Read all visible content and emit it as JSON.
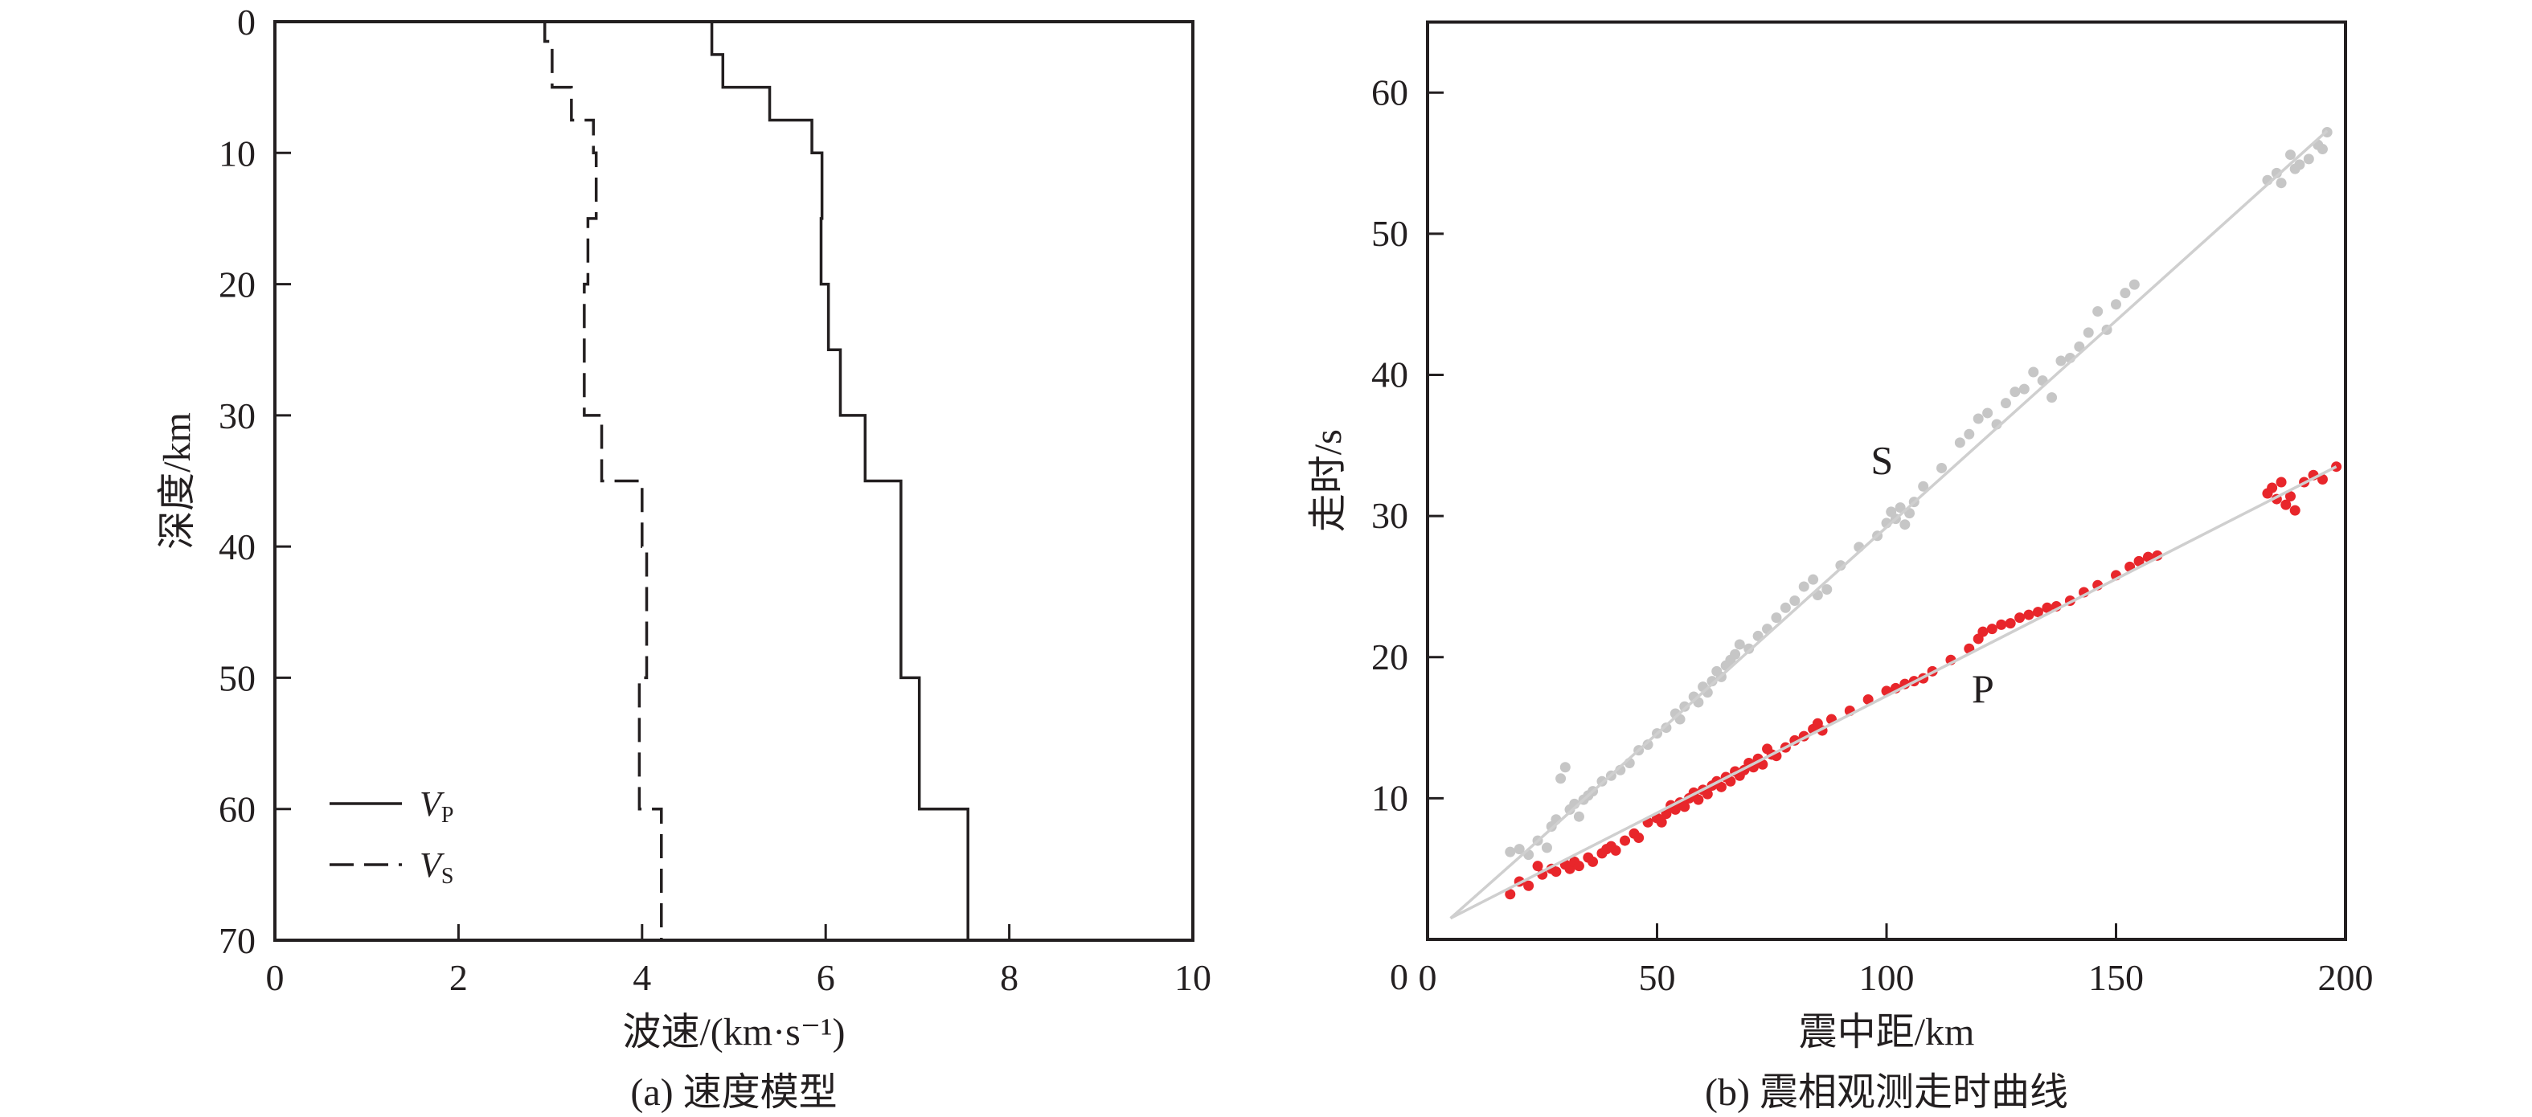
{
  "colors": {
    "axis": "#231f20",
    "p_points": "#e8262b",
    "s_points": "#c6c6c6",
    "fit_line": "#cfcfcf"
  },
  "chart_data": [
    {
      "type": "line",
      "subtype": "step-profile",
      "caption": "(a) 速度模型",
      "xlabel": "波速/(km·s⁻¹)",
      "ylabel": "深度/km",
      "xlim": [
        0,
        10
      ],
      "ylim": [
        0,
        70
      ],
      "y_inverted": true,
      "xticks": [
        "0",
        "2",
        "4",
        "6",
        "8",
        "10"
      ],
      "yticks": [
        "0",
        "10",
        "20",
        "30",
        "40",
        "50",
        "60",
        "70"
      ],
      "grid": false,
      "legend_position": "bottom-left",
      "series": [
        {
          "name": "V",
          "sub": "P",
          "style": "solid",
          "layers": [
            [
              0,
              2.5,
              4.76
            ],
            [
              2.5,
              5,
              4.88
            ],
            [
              5,
              7.5,
              5.39
            ],
            [
              7.5,
              10,
              5.85
            ],
            [
              10,
              15,
              5.96
            ],
            [
              15,
              20,
              5.95
            ],
            [
              20,
              25,
              6.03
            ],
            [
              25,
              30,
              6.16
            ],
            [
              30,
              35,
              6.43
            ],
            [
              35,
              50,
              6.82
            ],
            [
              50,
              60,
              7.02
            ],
            [
              60,
              70,
              7.55
            ]
          ]
        },
        {
          "name": "V",
          "sub": "S",
          "style": "dashed",
          "layers": [
            [
              0,
              1.5,
              2.94
            ],
            [
              1.5,
              5,
              3.02
            ],
            [
              5,
              7.5,
              3.23
            ],
            [
              7.5,
              10,
              3.47
            ],
            [
              10,
              15,
              3.5
            ],
            [
              15,
              20,
              3.41
            ],
            [
              20,
              30,
              3.37
            ],
            [
              30,
              35,
              3.56
            ],
            [
              35,
              40,
              4.0
            ],
            [
              40,
              50,
              4.05
            ],
            [
              50,
              60,
              3.97
            ],
            [
              60,
              70,
              4.21
            ]
          ]
        }
      ]
    },
    {
      "type": "scatter",
      "caption": "(b) 震相观测走时曲线",
      "xlabel": "震中距/km",
      "ylabel": "走时/s",
      "xlim": [
        0,
        200
      ],
      "ylim": [
        0,
        65
      ],
      "xticks": [
        "0",
        "50",
        "100",
        "150",
        "200"
      ],
      "yticks": [
        "0",
        "10",
        "20",
        "30",
        "40",
        "50",
        "60"
      ],
      "grid": false,
      "annotations": [
        {
          "text": "S",
          "x": 99,
          "t": 33
        },
        {
          "text": "P",
          "x": 121,
          "t": 16.8
        }
      ],
      "fit_lines": [
        {
          "phase": "S",
          "points": [
            [
              5,
              1.5
            ],
            [
              23.4,
              6.8
            ],
            [
              196,
              57.3
            ]
          ]
        },
        {
          "phase": "P",
          "points": [
            [
              5,
              1.5
            ],
            [
              198,
              33.5
            ]
          ]
        }
      ],
      "series": [
        {
          "phase": "S",
          "color": "#c6c6c6",
          "points": [
            [
              18,
              6.2
            ],
            [
              20,
              6.4
            ],
            [
              22,
              6.0
            ],
            [
              24,
              7.0
            ],
            [
              26,
              6.5
            ],
            [
              27,
              8.0
            ],
            [
              28,
              8.5
            ],
            [
              29,
              11.4
            ],
            [
              30,
              12.2
            ],
            [
              31,
              9.2
            ],
            [
              32,
              9.6
            ],
            [
              33,
              8.7
            ],
            [
              34,
              9.9
            ],
            [
              35,
              10.2
            ],
            [
              36,
              10.5
            ],
            [
              38,
              11.2
            ],
            [
              40,
              11.6
            ],
            [
              42,
              12.0
            ],
            [
              44,
              12.5
            ],
            [
              46,
              13.4
            ],
            [
              48,
              13.8
            ],
            [
              50,
              14.6
            ],
            [
              52,
              15.0
            ],
            [
              54,
              16.0
            ],
            [
              55,
              15.6
            ],
            [
              56,
              16.5
            ],
            [
              58,
              17.2
            ],
            [
              59,
              16.8
            ],
            [
              60,
              17.9
            ],
            [
              61,
              17.5
            ],
            [
              62,
              18.3
            ],
            [
              63,
              19.0
            ],
            [
              64,
              18.6
            ],
            [
              65,
              19.4
            ],
            [
              66,
              19.8
            ],
            [
              67,
              20.2
            ],
            [
              68,
              20.9
            ],
            [
              70,
              20.6
            ],
            [
              72,
              21.5
            ],
            [
              74,
              22.0
            ],
            [
              76,
              22.8
            ],
            [
              78,
              23.5
            ],
            [
              80,
              24.0
            ],
            [
              82,
              25.0
            ],
            [
              84,
              25.5
            ],
            [
              85,
              24.4
            ],
            [
              87,
              24.8
            ],
            [
              90,
              26.5
            ],
            [
              94,
              27.8
            ],
            [
              98,
              28.6
            ],
            [
              100,
              29.5
            ],
            [
              101,
              30.3
            ],
            [
              102,
              29.8
            ],
            [
              103,
              30.6
            ],
            [
              104,
              29.4
            ],
            [
              105,
              30.2
            ],
            [
              106,
              31.0
            ],
            [
              108,
              32.1
            ],
            [
              112,
              33.4
            ],
            [
              116,
              35.2
            ],
            [
              118,
              35.8
            ],
            [
              120,
              36.9
            ],
            [
              122,
              37.3
            ],
            [
              124,
              36.5
            ],
            [
              126,
              38.0
            ],
            [
              128,
              38.8
            ],
            [
              130,
              39.0
            ],
            [
              132,
              40.2
            ],
            [
              134,
              39.6
            ],
            [
              136,
              38.4
            ],
            [
              138,
              41.0
            ],
            [
              140,
              41.2
            ],
            [
              142,
              42.0
            ],
            [
              144,
              43.0
            ],
            [
              146,
              44.5
            ],
            [
              148,
              43.2
            ],
            [
              150,
              45.0
            ],
            [
              152,
              45.8
            ],
            [
              154,
              46.4
            ],
            [
              183,
              53.8
            ],
            [
              185,
              54.3
            ],
            [
              186,
              53.6
            ],
            [
              188,
              55.6
            ],
            [
              189,
              54.6
            ],
            [
              190,
              54.9
            ],
            [
              192,
              55.3
            ],
            [
              194,
              56.3
            ],
            [
              195,
              56.0
            ],
            [
              196,
              57.2
            ]
          ]
        },
        {
          "phase": "P",
          "color": "#e8262b",
          "points": [
            [
              18,
              3.2
            ],
            [
              20,
              4.1
            ],
            [
              22,
              3.8
            ],
            [
              24,
              5.2
            ],
            [
              25,
              4.6
            ],
            [
              27,
              5.0
            ],
            [
              28,
              4.8
            ],
            [
              30,
              5.3
            ],
            [
              31,
              5.0
            ],
            [
              32,
              5.5
            ],
            [
              33,
              5.2
            ],
            [
              35,
              5.8
            ],
            [
              36,
              5.5
            ],
            [
              38,
              6.1
            ],
            [
              39,
              6.4
            ],
            [
              40,
              6.6
            ],
            [
              41,
              6.3
            ],
            [
              43,
              7.0
            ],
            [
              45,
              7.5
            ],
            [
              46,
              7.2
            ],
            [
              48,
              8.3
            ],
            [
              50,
              8.6
            ],
            [
              51,
              8.3
            ],
            [
              52,
              8.9
            ],
            [
              53,
              9.5
            ],
            [
              54,
              9.2
            ],
            [
              55,
              9.7
            ],
            [
              56,
              9.4
            ],
            [
              57,
              10.0
            ],
            [
              58,
              10.4
            ],
            [
              59,
              9.9
            ],
            [
              60,
              10.6
            ],
            [
              61,
              10.3
            ],
            [
              62,
              10.9
            ],
            [
              63,
              11.2
            ],
            [
              64,
              10.8
            ],
            [
              65,
              11.5
            ],
            [
              66,
              11.2
            ],
            [
              67,
              11.9
            ],
            [
              68,
              11.6
            ],
            [
              69,
              12.0
            ],
            [
              70,
              12.5
            ],
            [
              71,
              12.2
            ],
            [
              72,
              12.8
            ],
            [
              73,
              12.4
            ],
            [
              74,
              13.5
            ],
            [
              75,
              13.1
            ],
            [
              76,
              13.0
            ],
            [
              78,
              13.6
            ],
            [
              80,
              14.1
            ],
            [
              82,
              14.4
            ],
            [
              84,
              14.9
            ],
            [
              85,
              15.3
            ],
            [
              86,
              14.8
            ],
            [
              88,
              15.6
            ],
            [
              92,
              16.2
            ],
            [
              96,
              17.0
            ],
            [
              100,
              17.6
            ],
            [
              102,
              17.8
            ],
            [
              104,
              18.1
            ],
            [
              106,
              18.3
            ],
            [
              108,
              18.5
            ],
            [
              110,
              19.0
            ],
            [
              114,
              19.8
            ],
            [
              118,
              20.6
            ],
            [
              120,
              21.3
            ],
            [
              121,
              21.8
            ],
            [
              123,
              22.0
            ],
            [
              125,
              22.3
            ],
            [
              127,
              22.4
            ],
            [
              129,
              22.8
            ],
            [
              131,
              23.0
            ],
            [
              133,
              23.2
            ],
            [
              135,
              23.5
            ],
            [
              137,
              23.6
            ],
            [
              140,
              24.0
            ],
            [
              143,
              24.6
            ],
            [
              146,
              25.1
            ],
            [
              150,
              25.8
            ],
            [
              153,
              26.4
            ],
            [
              155,
              26.8
            ],
            [
              157,
              27.1
            ],
            [
              159,
              27.2
            ],
            [
              183,
              31.6
            ],
            [
              184,
              32.0
            ],
            [
              185,
              31.2
            ],
            [
              186,
              32.4
            ],
            [
              187,
              30.8
            ],
            [
              188,
              31.4
            ],
            [
              189,
              30.4
            ],
            [
              191,
              32.4
            ],
            [
              193,
              32.9
            ],
            [
              195,
              32.6
            ],
            [
              198,
              33.5
            ]
          ]
        }
      ]
    }
  ]
}
